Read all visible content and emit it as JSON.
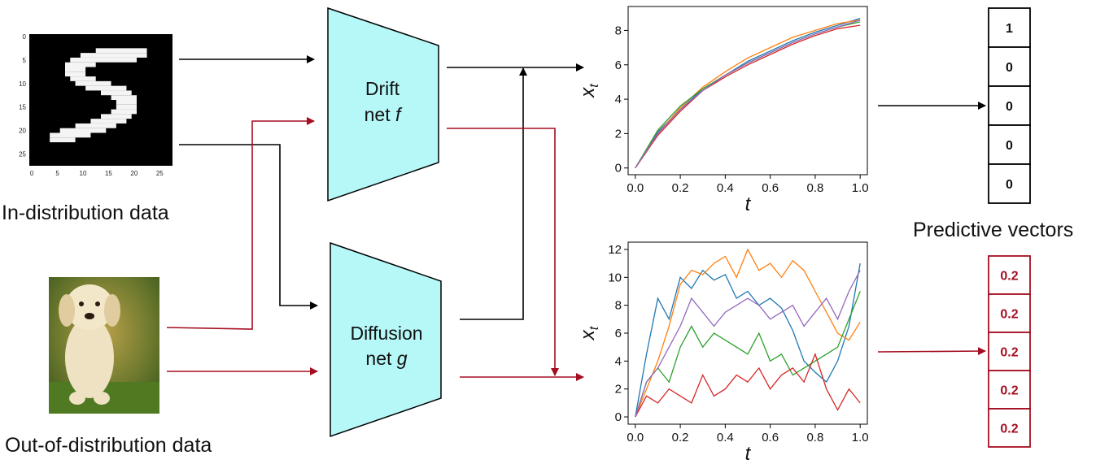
{
  "captions": {
    "in_distribution": "In-distribution data",
    "out_of_distribution": "Out-of-distribution data",
    "predictive_vectors": "Predictive vectors"
  },
  "drift_net": {
    "line1": "Drift",
    "line2_prefix": "net ",
    "symbol": "f"
  },
  "diffusion_net": {
    "line1": "Diffusion",
    "line2_prefix": "net ",
    "symbol": "g"
  },
  "mnist": {
    "x_ticks": [
      "0",
      "5",
      "10",
      "15",
      "20",
      "25"
    ],
    "y_ticks": [
      "0",
      "5",
      "10",
      "15",
      "20",
      "25"
    ]
  },
  "vectors": {
    "in_distribution": [
      "1",
      "0",
      "0",
      "0",
      "0"
    ],
    "out_of_distribution": [
      "0.2",
      "0.2",
      "0.2",
      "0.2",
      "0.2"
    ]
  },
  "colors": {
    "black_arrow": "#000000",
    "red_arrow": "#a50e22",
    "net_fill": "#b6f7f7"
  },
  "chart_data": [
    {
      "type": "line",
      "xlabel": "t",
      "ylabel": "x",
      "ylabel_subscript": "t",
      "xlim": [
        0,
        1
      ],
      "ylim": [
        0,
        9
      ],
      "x_ticks": [
        "0.0",
        "0.2",
        "0.4",
        "0.6",
        "0.8",
        "1.0"
      ],
      "y_ticks": [
        "0",
        "2",
        "4",
        "6",
        "8"
      ],
      "x": [
        0,
        0.1,
        0.2,
        0.3,
        0.4,
        0.5,
        0.6,
        0.7,
        0.8,
        0.9,
        1.0
      ],
      "series": [
        {
          "color": "#1f77b4",
          "values": [
            0,
            2.1,
            3.4,
            4.6,
            5.4,
            6.2,
            6.8,
            7.4,
            7.9,
            8.3,
            8.7
          ]
        },
        {
          "color": "#ff7f0e",
          "values": [
            0,
            2.0,
            3.5,
            4.7,
            5.6,
            6.4,
            7.0,
            7.6,
            8.0,
            8.4,
            8.6
          ]
        },
        {
          "color": "#2ca02c",
          "values": [
            0,
            2.2,
            3.6,
            4.6,
            5.4,
            6.1,
            6.7,
            7.3,
            7.8,
            8.2,
            8.5
          ]
        },
        {
          "color": "#d62728",
          "values": [
            0,
            1.9,
            3.3,
            4.5,
            5.3,
            6.0,
            6.6,
            7.2,
            7.7,
            8.1,
            8.3
          ]
        },
        {
          "color": "#9467bd",
          "values": [
            0,
            2.0,
            3.4,
            4.5,
            5.4,
            6.1,
            6.7,
            7.3,
            7.8,
            8.2,
            8.6
          ]
        }
      ]
    },
    {
      "type": "line",
      "xlabel": "t",
      "ylabel": "x",
      "ylabel_subscript": "t",
      "xlim": [
        0,
        1
      ],
      "ylim": [
        0,
        12
      ],
      "x_ticks": [
        "0.0",
        "0.2",
        "0.4",
        "0.6",
        "0.8",
        "1.0"
      ],
      "y_ticks": [
        "0",
        "2",
        "4",
        "6",
        "8",
        "10",
        "12"
      ],
      "x": [
        0,
        0.05,
        0.1,
        0.15,
        0.2,
        0.25,
        0.3,
        0.35,
        0.4,
        0.45,
        0.5,
        0.55,
        0.6,
        0.65,
        0.7,
        0.75,
        0.8,
        0.85,
        0.9,
        0.95,
        1.0
      ],
      "series": [
        {
          "color": "#1f77b4",
          "values": [
            0,
            4.5,
            8.5,
            7.0,
            10.0,
            9.2,
            10.5,
            9.8,
            10.2,
            8.5,
            9.0,
            8.0,
            8.5,
            7.8,
            6.2,
            4.0,
            3.2,
            2.5,
            4.0,
            6.5,
            11.0
          ]
        },
        {
          "color": "#ff7f0e",
          "values": [
            0,
            2.0,
            4.0,
            6.5,
            9.5,
            10.5,
            10.2,
            11.0,
            11.5,
            10.0,
            12.0,
            10.5,
            11.0,
            10.0,
            11.2,
            10.5,
            9.0,
            7.5,
            6.0,
            5.5,
            6.8
          ]
        },
        {
          "color": "#2ca02c",
          "values": [
            0,
            2.5,
            3.5,
            2.5,
            5.0,
            6.5,
            5.0,
            6.0,
            5.5,
            5.0,
            4.5,
            6.0,
            4.0,
            4.5,
            3.0,
            3.5,
            4.0,
            4.5,
            5.0,
            7.0,
            9.0
          ]
        },
        {
          "color": "#d62728",
          "values": [
            0,
            1.5,
            1.0,
            2.0,
            1.5,
            1.0,
            3.0,
            1.5,
            2.0,
            3.0,
            2.5,
            3.5,
            2.0,
            3.0,
            3.5,
            2.5,
            4.5,
            2.0,
            0.5,
            2.0,
            1.0
          ]
        },
        {
          "color": "#9467bd",
          "values": [
            0,
            2.5,
            3.5,
            5.0,
            6.5,
            8.5,
            7.5,
            6.5,
            7.5,
            8.0,
            8.5,
            8.0,
            7.0,
            7.5,
            8.0,
            6.5,
            7.5,
            8.5,
            7.0,
            9.0,
            10.5
          ]
        }
      ]
    }
  ]
}
